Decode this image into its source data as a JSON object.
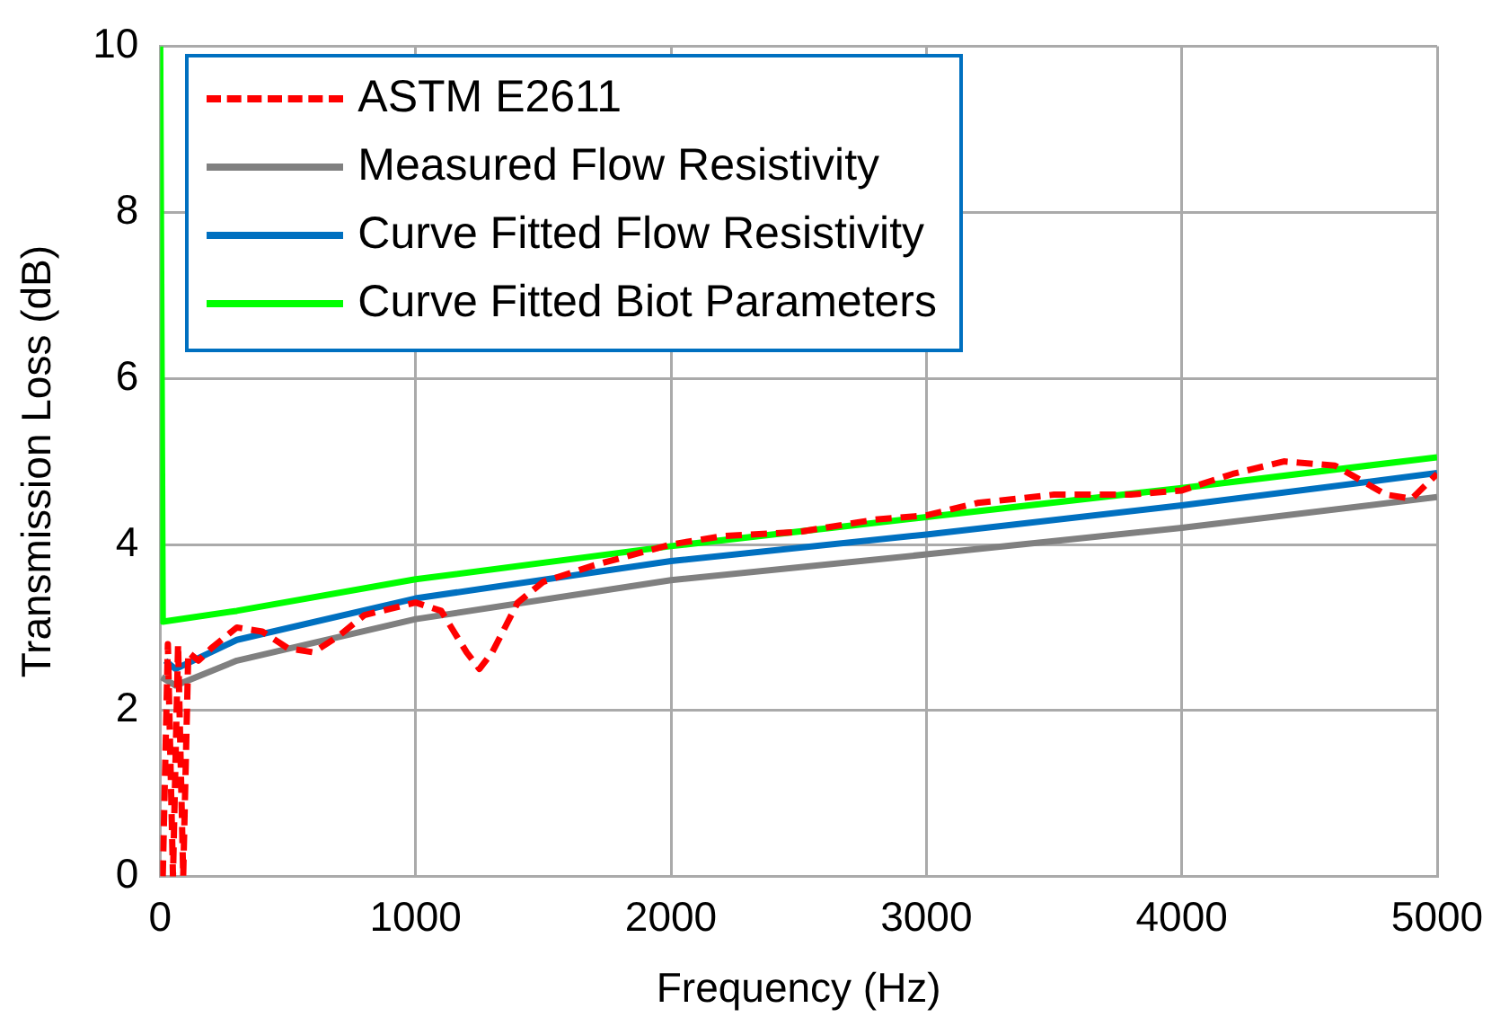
{
  "chart_data": {
    "type": "line",
    "xlabel": "Frequency (Hz)",
    "ylabel": "Transmission Loss (dB)",
    "xlim": [
      0,
      5000
    ],
    "xticks": [
      0,
      1000,
      2000,
      3000,
      4000,
      5000
    ],
    "ylim": [
      0,
      10
    ],
    "yticks": [
      0,
      2,
      4,
      6,
      8,
      10
    ],
    "grid": true,
    "legend": "top left",
    "marker": "none",
    "series": [
      {
        "name": "ASTM E2611",
        "color": "#ff0000",
        "line_style": "dashed",
        "x": [
          10,
          30,
          50,
          70,
          90,
          110,
          150,
          200,
          300,
          400,
          500,
          600,
          700,
          800,
          1000,
          1100,
          1200,
          1250,
          1300,
          1400,
          1500,
          1700,
          2000,
          2200,
          2500,
          2800,
          3000,
          3200,
          3500,
          3800,
          4000,
          4200,
          4400,
          4600,
          4800,
          4900,
          5000
        ],
        "values": [
          0,
          2.8,
          0,
          2.8,
          0,
          2.7,
          2.6,
          2.75,
          3.0,
          2.95,
          2.75,
          2.7,
          2.9,
          3.15,
          3.3,
          3.2,
          2.7,
          2.5,
          2.7,
          3.3,
          3.55,
          3.75,
          4.0,
          4.1,
          4.15,
          4.3,
          4.35,
          4.5,
          4.6,
          4.6,
          4.65,
          4.85,
          5.0,
          4.95,
          4.6,
          4.55,
          4.85
        ]
      },
      {
        "name": "Measured Flow Resistivity",
        "color": "#808080",
        "line_style": "solid",
        "x": [
          5,
          60,
          300,
          1000,
          2000,
          3000,
          4000,
          5000
        ],
        "values": [
          2.4,
          2.3,
          2.6,
          3.1,
          3.57,
          3.88,
          4.2,
          4.57
        ]
      },
      {
        "name": "Curve Fitted Flow Resistivity",
        "color": "#0070c0",
        "line_style": "solid",
        "x": [
          20,
          60,
          300,
          1000,
          2000,
          3000,
          4000,
          5000
        ],
        "values": [
          2.6,
          2.5,
          2.85,
          3.35,
          3.8,
          4.12,
          4.47,
          4.86
        ]
      },
      {
        "name": "Curve Fitted Biot Parameters",
        "color": "#00ff00",
        "line_style": "solid",
        "x": [
          0,
          10,
          300,
          1000,
          2000,
          3000,
          4000,
          5000
        ],
        "values": [
          10,
          3.07,
          3.2,
          3.58,
          3.98,
          4.33,
          4.68,
          5.05
        ]
      }
    ]
  }
}
